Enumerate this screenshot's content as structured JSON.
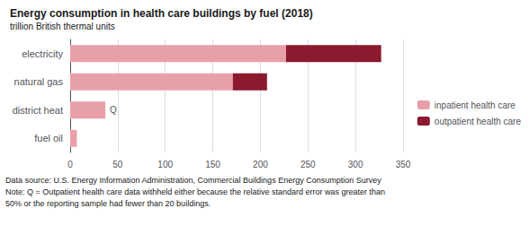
{
  "chart_data": {
    "type": "bar",
    "orientation": "horizontal",
    "stacked": true,
    "title": "Energy consumption in health care buildings by fuel (2018)",
    "subtitle": "trillion British thermal units",
    "categories": [
      "electricity",
      "natural gas",
      "district heat",
      "fuel oil"
    ],
    "series": [
      {
        "name": "inpatient health care",
        "color": "#e8a0a8",
        "values": [
          227,
          171,
          37,
          7
        ]
      },
      {
        "name": "outpatient health care",
        "color": "#8b1a2e",
        "values": [
          100,
          36,
          0,
          0
        ]
      }
    ],
    "xlim": [
      0,
      350
    ],
    "xticks": [
      0,
      50,
      100,
      150,
      200,
      250,
      300,
      350
    ],
    "grid": true,
    "legend": "right",
    "annotations": [
      {
        "text": "Q",
        "category": "district heat"
      }
    ],
    "footnotes": [
      "Data source: U.S. Energy Information Administration, Commercial Buildings Energy Consumption Survey",
      "Note: Q = Outpatient health care data withheld either because the relative standard error was greater than",
      "50% or the reporting sample had fewer than 20 buildings."
    ]
  }
}
